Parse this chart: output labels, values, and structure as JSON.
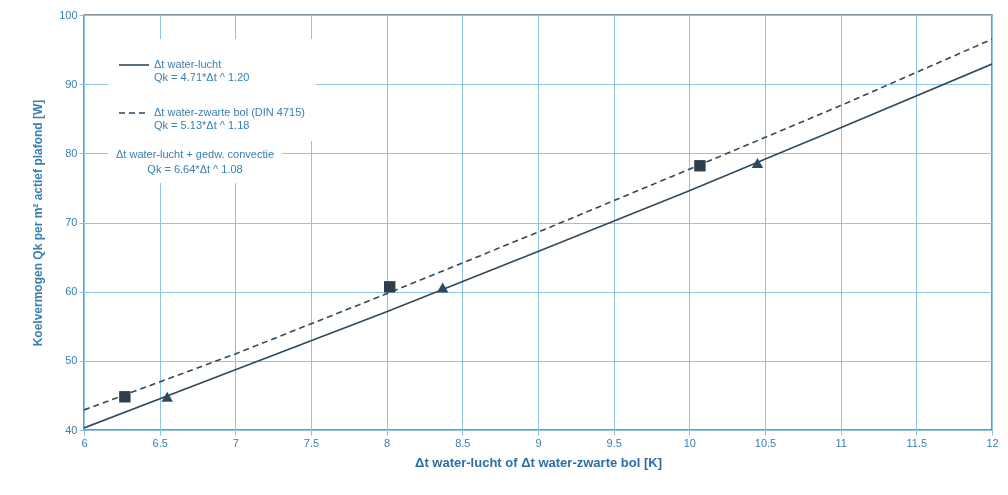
{
  "chart_data": {
    "type": "line",
    "xlabel": "Δt water-lucht of Δt water-zwarte bol [K]",
    "ylabel": "Koelvermogen Qk per m² actief plafond [W]",
    "xlim": [
      6,
      12
    ],
    "xticks": [
      6,
      6.5,
      7,
      7.5,
      8,
      8.5,
      9,
      9.5,
      10,
      10.5,
      11,
      11.5,
      12
    ],
    "ylim": [
      40,
      100
    ],
    "yticks": [
      40,
      50,
      60,
      70,
      80,
      90,
      100
    ],
    "grid": true,
    "legend": "top left",
    "series": [
      {
        "name": "Δt water-lucht",
        "color": "#2f4a5e",
        "line_style": "solid",
        "x": [
          6,
          7,
          8,
          9,
          10,
          11,
          12
        ],
        "values": [
          40.3,
          48.7,
          57.1,
          65.8,
          74.6,
          83.7,
          92.9
        ]
      },
      {
        "name": "Δt water-zwarte bol (DIN 4715)",
        "color": "#2f4a5e",
        "line_style": "dashed",
        "x": [
          6,
          7,
          8,
          9,
          10,
          11,
          12
        ],
        "values": [
          42.9,
          51.0,
          59.7,
          68.6,
          77.7,
          86.9,
          96.5
        ]
      },
      {
        "type": "scatter",
        "color": "#2f4a5e",
        "marker": "triangle",
        "x": [
          6.55,
          8.37,
          10.45
        ],
        "values": [
          44.8,
          60.6,
          78.6
        ]
      },
      {
        "type": "scatter",
        "color": "#2d3f4f",
        "marker": "square",
        "x": [
          6.27,
          8.02,
          10.07
        ],
        "values": [
          44.8,
          60.7,
          78.2
        ]
      }
    ],
    "annotations": [
      "Qk = 4.71*Δt ^ 1.20",
      "Qk = 5.13*Δt ^ 1.18",
      "Δt water-lucht + gedw. convectie",
      "Qk = 6.64*Δt ^ 1.08"
    ]
  }
}
